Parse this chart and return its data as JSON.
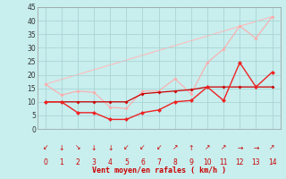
{
  "title": "",
  "xlabel": "Vent moyen/en rafales ( km/h )",
  "background_color": "#c8eeee",
  "grid_color": "#aad4d4",
  "xlim": [
    -0.5,
    14.5
  ],
  "ylim": [
    0,
    45
  ],
  "yticks": [
    0,
    5,
    10,
    15,
    20,
    25,
    30,
    35,
    40,
    45
  ],
  "xticks": [
    0,
    1,
    2,
    3,
    4,
    5,
    6,
    7,
    8,
    9,
    10,
    11,
    12,
    13,
    14
  ],
  "series": [
    {
      "label": "rafales_pink",
      "x": [
        0,
        1,
        2,
        3,
        4,
        5,
        6,
        7,
        8,
        9,
        10,
        11,
        12,
        13,
        14
      ],
      "y": [
        16.5,
        12.5,
        14,
        13.5,
        8,
        7.5,
        14,
        14,
        18.5,
        13,
        24.5,
        29.5,
        38,
        33.5,
        41.5
      ],
      "color": "#ffaaaa",
      "linewidth": 0.8,
      "markersize": 2.0,
      "zorder": 2
    },
    {
      "label": "trend_pink",
      "x": [
        0,
        14
      ],
      "y": [
        16.5,
        41.5
      ],
      "color": "#ffbbbb",
      "linewidth": 0.8,
      "markersize": 0,
      "zorder": 1
    },
    {
      "label": "moyen_red",
      "x": [
        0,
        1,
        2,
        3,
        4,
        5,
        6,
        7,
        8,
        9,
        10,
        11,
        12,
        13,
        14
      ],
      "y": [
        10,
        10,
        6,
        6,
        3.5,
        3.5,
        6,
        7,
        10,
        10.5,
        15.5,
        10.5,
        24.5,
        15.5,
        21
      ],
      "color": "#ee2222",
      "linewidth": 1.0,
      "markersize": 2.5,
      "zorder": 4
    },
    {
      "label": "smooth_dark",
      "x": [
        0,
        1,
        2,
        3,
        4,
        5,
        6,
        7,
        8,
        9,
        10,
        11,
        12,
        13,
        14
      ],
      "y": [
        10,
        10,
        10,
        10,
        10,
        10,
        13,
        13.5,
        14,
        14.5,
        15.5,
        15.5,
        15.5,
        15.5,
        15.5
      ],
      "color": "#cc0000",
      "linewidth": 0.9,
      "markersize": 2.0,
      "zorder": 3
    }
  ],
  "arrow_chars": [
    "↙",
    "↓",
    "↘",
    "↓",
    "↓",
    "↙",
    "↙",
    "↙",
    "↗",
    "↑",
    "↗",
    "↗",
    "→",
    "→",
    "↗"
  ],
  "arrow_color": "#cc0000"
}
